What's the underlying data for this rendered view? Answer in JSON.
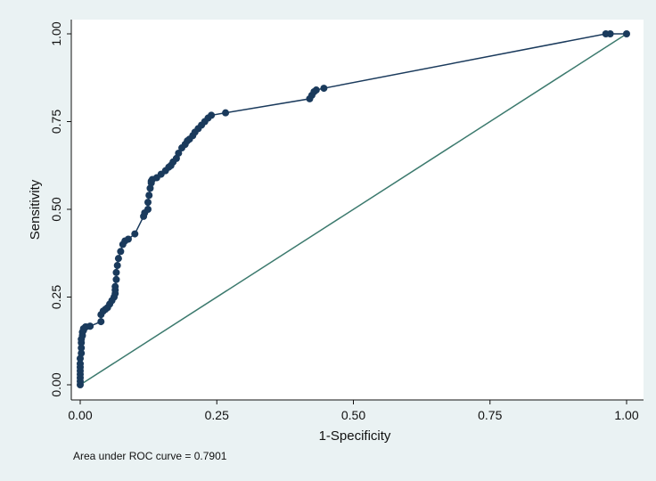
{
  "chart_data": {
    "type": "line",
    "title": "",
    "xlabel": "1-Specificity",
    "ylabel": "Sensitivity",
    "xlim": [
      0,
      1
    ],
    "ylim": [
      0,
      1
    ],
    "x_ticks": [
      "0.00",
      "0.25",
      "0.50",
      "0.75",
      "1.00"
    ],
    "y_ticks": [
      "0.00",
      "0.25",
      "0.50",
      "0.75",
      "1.00"
    ],
    "grid": false,
    "legend": "none",
    "note": "Area under ROC curve = 0.7901",
    "colors": {
      "roc_curve": "#1a3a5c",
      "reference_line": "#3c7a6e",
      "plot_background": "#ffffff",
      "outer_background": "#eaf2f3"
    },
    "series": [
      {
        "x": [
          0,
          0,
          0,
          0,
          0,
          0,
          0,
          0,
          0.002,
          0.002,
          0.002,
          0.002,
          0.004,
          0.004,
          0.006,
          0.006,
          0.01,
          0.01,
          0.018,
          0.018,
          0.038,
          0.038,
          0.042,
          0.046,
          0.05,
          0.054,
          0.058,
          0.062,
          0.064,
          0.064,
          0.064,
          0.066,
          0.066,
          0.068,
          0.07,
          0.074,
          0.078,
          0.082,
          0.088,
          0.1,
          0.116,
          0.118,
          0.124,
          0.124,
          0.126,
          0.128,
          0.13,
          0.13,
          0.132,
          0.14,
          0.148,
          0.156,
          0.162,
          0.166,
          0.17,
          0.176,
          0.18,
          0.186,
          0.192,
          0.196,
          0.2,
          0.206,
          0.21,
          0.216,
          0.222,
          0.228,
          0.234,
          0.24,
          0.266,
          0.42,
          0.424,
          0.428,
          0.432,
          0.446,
          0.962,
          0.97,
          1
        ],
        "y": [
          0,
          0.01,
          0.02,
          0.03,
          0.04,
          0.05,
          0.06,
          0.075,
          0.09,
          0.105,
          0.12,
          0.13,
          0.14,
          0.15,
          0.155,
          0.16,
          0.165,
          0.165,
          0.167,
          0.167,
          0.18,
          0.2,
          0.21,
          0.215,
          0.22,
          0.23,
          0.24,
          0.25,
          0.26,
          0.27,
          0.28,
          0.3,
          0.32,
          0.34,
          0.36,
          0.38,
          0.4,
          0.41,
          0.415,
          0.43,
          0.48,
          0.49,
          0.5,
          0.52,
          0.54,
          0.56,
          0.575,
          0.58,
          0.585,
          0.59,
          0.6,
          0.61,
          0.62,
          0.625,
          0.635,
          0.645,
          0.66,
          0.675,
          0.685,
          0.695,
          0.7,
          0.71,
          0.72,
          0.73,
          0.74,
          0.75,
          0.76,
          0.768,
          0.775,
          0.815,
          0.825,
          0.835,
          0.84,
          0.845,
          1,
          1,
          1
        ]
      },
      {
        "x": [
          0,
          1
        ],
        "y": [
          0,
          1
        ]
      }
    ]
  }
}
